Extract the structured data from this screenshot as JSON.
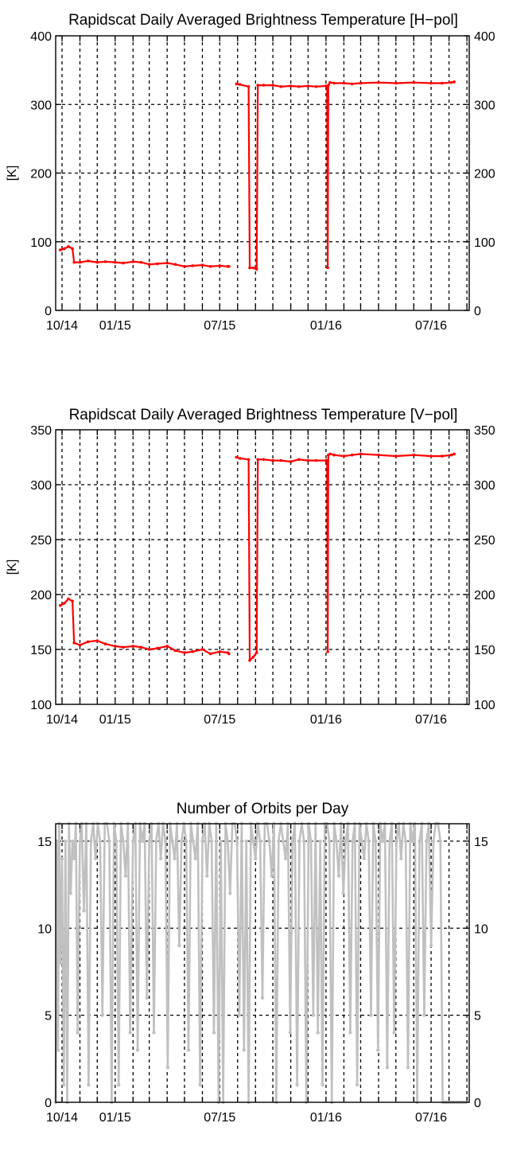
{
  "chart_data": [
    {
      "type": "line",
      "title": "Rapidscat Daily Averaged Brightness Temperature [H−pol]",
      "ylabel": "[K]",
      "ylim": [
        0,
        400
      ],
      "yticks": [
        "0",
        "100",
        "200",
        "300",
        "400"
      ],
      "xticks": [
        "10/14",
        "01/15",
        "07/15",
        "01/16",
        "07/16"
      ],
      "series": [
        {
          "color": "#ff0000",
          "x": [
            "2014-09-28",
            "2014-10-05",
            "2014-10-12",
            "2014-10-19",
            "2014-10-22",
            "2014-11-01",
            "2014-11-15",
            "2014-12-01",
            "2014-12-15",
            "2015-01-01",
            "2015-01-15",
            "2015-02-01",
            "2015-02-15",
            "2015-03-01",
            "2015-03-15",
            "2015-04-01",
            "2015-04-15",
            "2015-05-01",
            "2015-05-15",
            "2015-06-01",
            "2015-06-15",
            "2015-07-01",
            "2015-07-15",
            "2015-07-17",
            null,
            "2015-07-30",
            "2015-08-05",
            "2015-08-20",
            "2015-08-22",
            "2015-08-28",
            "2015-09-03",
            "2015-09-05",
            "2015-09-15",
            "2015-10-01",
            "2015-10-15",
            "2015-11-01",
            "2015-11-15",
            "2015-12-01",
            "2015-12-15",
            "2016-01-01",
            "2016-01-03",
            "2016-01-04",
            "2016-01-05",
            "2016-01-08",
            "2016-01-15",
            "2016-02-01",
            "2016-02-15",
            "2016-03-01",
            "2016-04-01",
            "2016-05-01",
            "2016-06-01",
            "2016-07-01",
            "2016-07-20",
            "2016-08-05",
            "2016-08-10"
          ],
          "y": [
            88,
            90,
            93,
            90,
            70,
            70,
            72,
            70,
            71,
            70,
            69,
            71,
            70,
            67,
            68,
            69,
            67,
            64,
            65,
            66,
            64,
            65,
            64,
            64,
            null,
            330,
            329,
            326,
            62,
            62,
            60,
            328,
            328,
            328,
            326,
            327,
            326,
            327,
            326,
            327,
            326,
            62,
            328,
            332,
            331,
            331,
            330,
            331,
            332,
            331,
            332,
            331,
            331,
            332,
            333
          ]
        }
      ]
    },
    {
      "type": "line",
      "title": "Rapidscat Daily Averaged Brightness Temperature [V−pol]",
      "ylabel": "[K]",
      "ylim": [
        100,
        350
      ],
      "yticks": [
        "100",
        "150",
        "200",
        "250",
        "300",
        "350"
      ],
      "xticks": [
        "10/14",
        "01/15",
        "07/15",
        "01/16",
        "07/16"
      ],
      "series": [
        {
          "color": "#ff0000",
          "x": [
            "2014-09-28",
            "2014-10-05",
            "2014-10-12",
            "2014-10-19",
            "2014-10-22",
            "2014-11-01",
            "2014-11-15",
            "2014-12-01",
            "2014-12-15",
            "2015-01-01",
            "2015-01-15",
            "2015-02-01",
            "2015-02-15",
            "2015-03-01",
            "2015-03-15",
            "2015-04-01",
            "2015-04-15",
            "2015-05-01",
            "2015-05-15",
            "2015-06-01",
            "2015-06-15",
            "2015-07-01",
            "2015-07-15",
            "2015-07-17",
            null,
            "2015-07-30",
            "2015-08-05",
            "2015-08-20",
            "2015-08-22",
            "2015-08-28",
            "2015-09-03",
            "2015-09-05",
            "2015-09-15",
            "2015-10-01",
            "2015-10-15",
            "2015-11-01",
            "2015-11-15",
            "2015-12-01",
            "2015-12-15",
            "2016-01-01",
            "2016-01-03",
            "2016-01-04",
            "2016-01-05",
            "2016-01-08",
            "2016-01-15",
            "2016-02-01",
            "2016-02-15",
            "2016-03-01",
            "2016-04-01",
            "2016-05-01",
            "2016-06-01",
            "2016-07-01",
            "2016-07-20",
            "2016-08-05",
            "2016-08-10"
          ],
          "y": [
            190,
            192,
            196,
            194,
            156,
            154,
            157,
            158,
            155,
            153,
            152,
            153,
            152,
            150,
            151,
            153,
            149,
            147,
            148,
            150,
            146,
            148,
            147,
            146,
            null,
            325,
            324,
            323,
            140,
            143,
            147,
            323,
            323,
            322,
            322,
            321,
            323,
            322,
            322,
            322,
            322,
            148,
            327,
            328,
            327,
            326,
            327,
            328,
            327,
            326,
            327,
            326,
            326,
            327,
            328
          ]
        }
      ]
    },
    {
      "type": "line",
      "title": "Number of Orbits per Day",
      "ylabel": "",
      "ylim": [
        0,
        16
      ],
      "yticks": [
        "0",
        "5",
        "10",
        "15"
      ],
      "xticks": [
        "10/14",
        "01/15",
        "07/15",
        "01/16",
        "07/16"
      ],
      "series": [
        {
          "color": "#c0c0c0",
          "x": [
            "2014-09-20",
            "2014-09-22",
            "2014-09-24",
            "2014-09-26",
            "2014-09-28",
            "2014-10-01",
            "2014-10-04",
            "2014-10-07",
            "2014-10-10",
            "2014-10-13",
            "2014-10-16",
            "2014-10-19",
            "2014-10-22",
            "2014-10-25",
            "2014-10-28",
            "2014-11-01",
            "2014-11-04",
            "2014-11-08",
            "2014-11-12",
            "2014-11-16",
            "2014-11-20",
            "2014-11-24",
            "2014-11-28",
            "2014-12-02",
            "2014-12-06",
            "2014-12-10",
            "2014-12-14",
            "2014-12-18",
            "2014-12-22",
            "2014-12-26",
            "2014-12-30",
            "2015-01-03",
            "2015-01-07",
            "2015-01-11",
            "2015-01-15",
            "2015-01-19",
            "2015-01-23",
            "2015-01-27",
            "2015-02-01",
            "2015-02-05",
            "2015-02-09",
            "2015-02-13",
            "2015-02-17",
            "2015-02-21",
            "2015-02-25",
            "2015-03-01",
            "2015-03-05",
            "2015-03-09",
            "2015-03-13",
            "2015-03-17",
            "2015-03-21",
            "2015-03-25",
            "2015-03-29",
            "2015-04-02",
            "2015-04-06",
            "2015-04-10",
            "2015-04-14",
            "2015-04-18",
            "2015-04-22",
            "2015-04-26",
            "2015-04-30",
            "2015-05-04",
            "2015-05-08",
            "2015-05-12",
            "2015-05-16",
            "2015-05-20",
            "2015-05-24",
            "2015-05-28",
            "2015-06-01",
            "2015-06-05",
            "2015-06-09",
            "2015-06-13",
            "2015-06-17",
            "2015-06-21",
            "2015-06-25",
            "2015-06-29",
            "2015-07-03",
            "2015-07-07",
            "2015-07-11",
            "2015-07-15",
            "2015-07-19",
            "2015-07-23",
            "2015-07-27",
            "2015-07-31",
            "2015-08-04",
            "2015-08-08",
            "2015-08-12",
            "2015-08-16",
            "2015-08-20",
            "2015-08-24",
            "2015-08-28",
            "2015-09-01",
            "2015-09-05",
            "2015-09-09",
            "2015-09-13",
            "2015-09-17",
            "2015-09-21",
            "2015-09-25",
            "2015-09-29",
            "2015-10-03",
            "2015-10-07",
            "2015-10-11",
            "2015-10-15",
            "2015-10-19",
            "2015-10-23",
            "2015-10-27",
            "2015-10-31",
            "2015-11-04",
            "2015-11-08",
            "2015-11-12",
            "2015-11-16",
            "2015-11-20",
            "2015-11-24",
            "2015-11-28",
            "2015-12-02",
            "2015-12-06",
            "2015-12-10",
            "2015-12-14",
            "2015-12-18",
            "2015-12-22",
            "2015-12-26",
            "2015-12-30",
            "2016-01-03",
            "2016-01-07",
            "2016-01-11",
            "2016-01-15",
            "2016-01-19",
            "2016-01-23",
            "2016-01-27",
            "2016-01-31",
            "2016-02-04",
            "2016-02-08",
            "2016-02-12",
            "2016-02-16",
            "2016-02-20",
            "2016-02-24",
            "2016-02-28",
            "2016-03-03",
            "2016-03-07",
            "2016-03-11",
            "2016-03-15",
            "2016-03-19",
            "2016-03-23",
            "2016-03-27",
            "2016-03-31",
            "2016-04-04",
            "2016-04-08",
            "2016-04-12",
            "2016-04-16",
            "2016-04-20",
            "2016-04-24",
            "2016-04-28",
            "2016-05-02",
            "2016-05-06",
            "2016-05-10",
            "2016-05-14",
            "2016-05-18",
            "2016-05-22",
            "2016-05-26",
            "2016-05-30",
            "2016-06-03",
            "2016-06-07",
            "2016-06-11",
            "2016-06-15",
            "2016-06-19",
            "2016-06-23",
            "2016-06-27",
            "2016-07-01",
            "2016-07-05",
            "2016-07-09",
            "2016-07-13",
            "2016-07-17",
            "2016-07-21",
            "2016-07-25",
            "2016-07-29",
            "2016-08-02",
            "2016-08-06",
            "2016-08-10",
            "2016-08-14",
            "2016-08-18",
            "2016-08-22",
            "2016-08-26",
            "2016-08-30"
          ],
          "y": [
            0,
            15,
            3,
            16,
            8,
            14,
            1,
            15,
            0,
            16,
            12,
            15,
            14,
            16,
            4,
            15,
            16,
            11,
            16,
            1,
            15,
            16,
            14,
            16,
            15,
            5,
            16,
            16,
            15,
            0,
            16,
            15,
            1,
            16,
            15,
            13,
            16,
            4,
            15,
            16,
            3,
            16,
            15,
            16,
            6,
            15,
            16,
            4,
            15,
            16,
            14,
            16,
            15,
            2,
            16,
            15,
            14,
            16,
            9,
            15,
            16,
            15,
            3,
            16,
            15,
            14,
            16,
            1,
            15,
            16,
            13,
            16,
            15,
            4,
            16,
            0,
            15,
            0,
            16,
            15,
            12,
            16,
            16,
            15,
            5,
            16,
            3,
            15,
            0,
            16,
            15,
            14,
            16,
            15,
            6,
            16,
            16,
            15,
            13,
            16,
            0,
            15,
            16,
            15,
            14,
            16,
            4,
            15,
            16,
            1,
            15,
            16,
            15,
            0,
            16,
            15,
            5,
            16,
            4,
            15,
            1,
            16,
            16,
            15,
            0,
            16,
            15,
            13,
            16,
            12,
            15,
            16,
            4,
            15,
            16,
            1,
            16,
            15,
            14,
            16,
            15,
            5,
            16,
            15,
            3,
            16,
            15,
            16,
            2,
            15,
            16,
            4,
            15,
            16,
            14,
            16,
            15,
            2,
            16,
            15,
            16,
            0,
            15,
            16,
            5,
            15,
            16,
            9,
            15,
            16,
            16,
            15,
            0,
            0,
            0,
            0,
            0,
            0,
            0,
            0,
            0,
            0,
            0
          ]
        }
      ]
    }
  ]
}
